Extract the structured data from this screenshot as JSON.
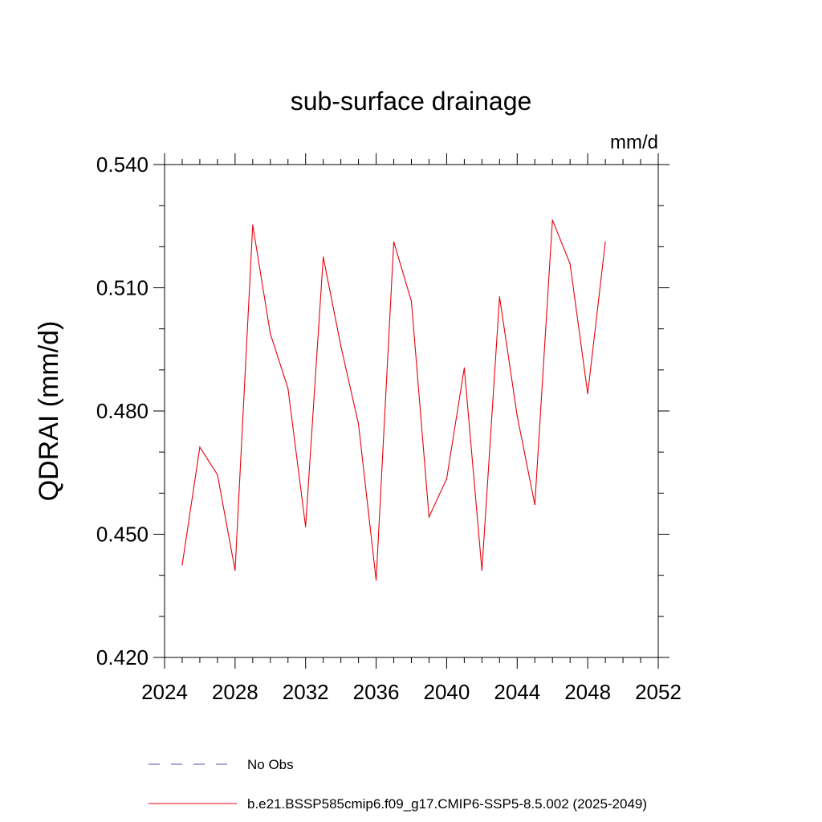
{
  "chart_data": {
    "type": "line",
    "title": "sub-surface drainage",
    "units": "mm/d",
    "ylabel": "QDRAI  (mm/d)",
    "xlabel": "",
    "xlim": [
      2024,
      2052
    ],
    "ylim": [
      0.42,
      0.54
    ],
    "xticks": [
      2024,
      2028,
      2032,
      2036,
      2040,
      2044,
      2048,
      2052
    ],
    "xtick_labels": [
      "2024",
      "2028",
      "2032",
      "2036",
      "2040",
      "2044",
      "2048",
      "2052"
    ],
    "yticks": [
      0.42,
      0.45,
      0.48,
      0.51,
      0.54
    ],
    "ytick_labels": [
      "0.420",
      "0.450",
      "0.480",
      "0.510",
      "0.540"
    ],
    "series": [
      {
        "name": "No Obs",
        "color": "#5b4fa8",
        "dash": "dashed",
        "x": [],
        "values": []
      },
      {
        "name": "b.e21.BSSP585cmip6.f09_g17.CMIP6-SSP5-8.5.002 (2025-2049)",
        "color": "#e8000b",
        "dash": "solid",
        "x": [
          2025,
          2026,
          2027,
          2028,
          2029,
          2030,
          2031,
          2032,
          2033,
          2034,
          2035,
          2036,
          2037,
          2038,
          2039,
          2040,
          2041,
          2042,
          2043,
          2044,
          2045,
          2046,
          2047,
          2048,
          2049
        ],
        "values": [
          0.4425,
          0.4712,
          0.4645,
          0.4412,
          0.5253,
          0.4988,
          0.4855,
          0.4518,
          0.5175,
          0.4958,
          0.4768,
          0.4388,
          0.5212,
          0.5067,
          0.4542,
          0.4635,
          0.4905,
          0.4412,
          0.5078,
          0.4788,
          0.4572,
          0.5265,
          0.5158,
          0.4842,
          0.5212
        ]
      }
    ],
    "legend": [
      {
        "label": "No Obs",
        "color": "#5b4fa8",
        "dash": "dashed"
      },
      {
        "label": "b.e21.BSSP585cmip6.f09_g17.CMIP6-SSP5-8.5.002 (2025-2049)",
        "color": "#e8000b",
        "dash": "solid"
      }
    ],
    "legend_position": "bottom",
    "grid": false
  }
}
